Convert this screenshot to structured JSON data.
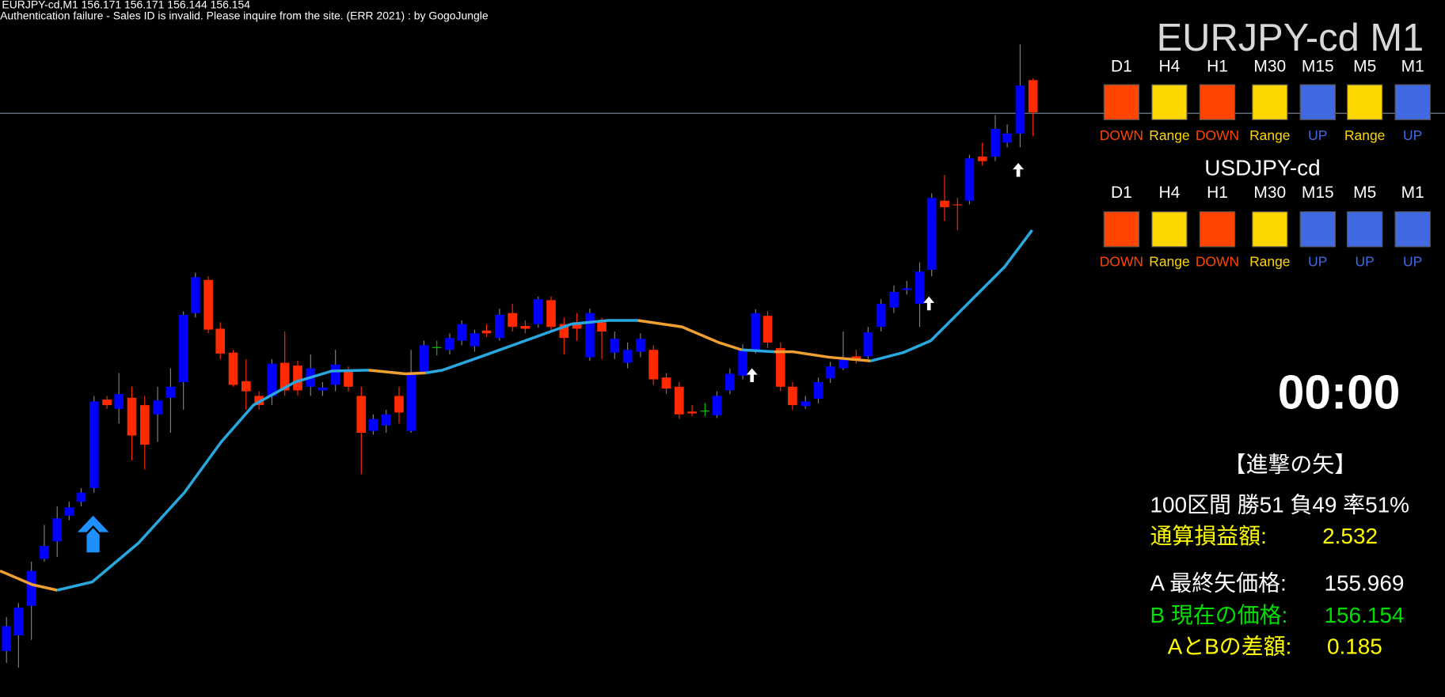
{
  "header": {
    "symbol_line": "EURJPY-cd,M1  156.171 156.171 156.144 156.154",
    "auth_message": "Authentication failure - Sales ID is invalid. Please inquire from the site. (ERR 2021) : by GogoJungle"
  },
  "panels": [
    {
      "title": "EURJPY-cd M1",
      "timeframes": [
        {
          "label": "D1",
          "status": "DOWN",
          "color": "#ff4500"
        },
        {
          "label": "H4",
          "status": "Range",
          "color": "#ffd700"
        },
        {
          "label": "H1",
          "status": "DOWN",
          "color": "#ff4500"
        },
        {
          "label": "M30",
          "status": "Range",
          "color": "#ffd700"
        },
        {
          "label": "M15",
          "status": "UP",
          "color": "#4169e1"
        },
        {
          "label": "M5",
          "status": "Range",
          "color": "#ffd700"
        },
        {
          "label": "M1",
          "status": "UP",
          "color": "#4169e1"
        }
      ]
    },
    {
      "title": "USDJPY-cd",
      "timeframes": [
        {
          "label": "D1",
          "status": "DOWN",
          "color": "#ff4500"
        },
        {
          "label": "H4",
          "status": "Range",
          "color": "#ffd700"
        },
        {
          "label": "H1",
          "status": "DOWN",
          "color": "#ff4500"
        },
        {
          "label": "M30",
          "status": "Range",
          "color": "#ffd700"
        },
        {
          "label": "M15",
          "status": "UP",
          "color": "#4169e1"
        },
        {
          "label": "M5",
          "status": "UP",
          "color": "#4169e1"
        },
        {
          "label": "M1",
          "status": "UP",
          "color": "#4169e1"
        }
      ]
    }
  ],
  "timer": "00:00",
  "stats": {
    "title": "【進撃の矢】",
    "summary": "100区間 勝51 負49 率51%",
    "pnl_label": "通算損益額:",
    "pnl_value": "2.532",
    "a_label": "A 最終矢価格:",
    "a_value": "155.969",
    "b_label": "B 現在の価格:",
    "b_value": "156.154",
    "diff_label": "AとBの差額:",
    "diff_value": "0.185"
  }
}
